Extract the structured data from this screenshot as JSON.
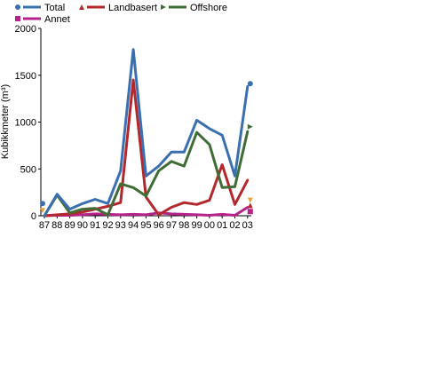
{
  "chart_data": {
    "type": "line",
    "title": "",
    "xlabel": "",
    "ylabel": "Kubikkmeter (m³)",
    "ylim": [
      0,
      2000
    ],
    "yticks": [
      0,
      500,
      1000,
      1500,
      2000
    ],
    "grid": false,
    "legend_position": "top",
    "categories": [
      "87",
      "88",
      "89",
      "90",
      "91",
      "92",
      "93",
      "94",
      "95",
      "96",
      "97",
      "98",
      "99",
      "00",
      "01",
      "02",
      "03"
    ],
    "series": [
      {
        "name": "Total",
        "color": "#3a6fb0",
        "marker": "circle",
        "values": [
          0,
          230,
          70,
          130,
          175,
          130,
          480,
          1775,
          425,
          530,
          680,
          680,
          1020,
          930,
          860,
          425,
          1380
        ]
      },
      {
        "name": "Landbasert",
        "color": "#b3282d",
        "marker": "triangle-up",
        "values": [
          0,
          10,
          20,
          40,
          70,
          100,
          140,
          1450,
          200,
          10,
          90,
          140,
          120,
          165,
          545,
          120,
          380
        ]
      },
      {
        "name": "Offshore",
        "color": "#3f6d35",
        "marker": "triangle-right",
        "values": [
          0,
          220,
          30,
          70,
          80,
          10,
          340,
          300,
          210,
          480,
          580,
          530,
          890,
          760,
          300,
          310,
          900
        ]
      },
      {
        "name": "Annet",
        "color": "#b5238a",
        "marker": "square",
        "values": [
          0,
          5,
          5,
          10,
          20,
          15,
          10,
          15,
          10,
          30,
          20,
          15,
          10,
          5,
          15,
          5,
          90
        ]
      }
    ],
    "edge_marks": [
      {
        "color": "#3a6fb0",
        "shape": "circle",
        "x": "87",
        "y": 130,
        "side": "left"
      },
      {
        "color": "#e8a33a",
        "shape": "triangle-down",
        "x": "87",
        "y": 55,
        "side": "left"
      },
      {
        "color": "#3a6fb0",
        "shape": "circle",
        "x": "03",
        "y": 1410,
        "side": "right"
      },
      {
        "color": "#3f6d35",
        "shape": "triangle-right",
        "x": "03",
        "y": 950,
        "side": "right"
      },
      {
        "color": "#e8a33a",
        "shape": "triangle-down",
        "x": "03",
        "y": 165,
        "side": "right"
      },
      {
        "color": "#b3282d",
        "shape": "triangle-up",
        "x": "03",
        "y": 110,
        "side": "right"
      },
      {
        "color": "#b5238a",
        "shape": "square",
        "x": "03",
        "y": 45,
        "side": "right"
      }
    ]
  }
}
